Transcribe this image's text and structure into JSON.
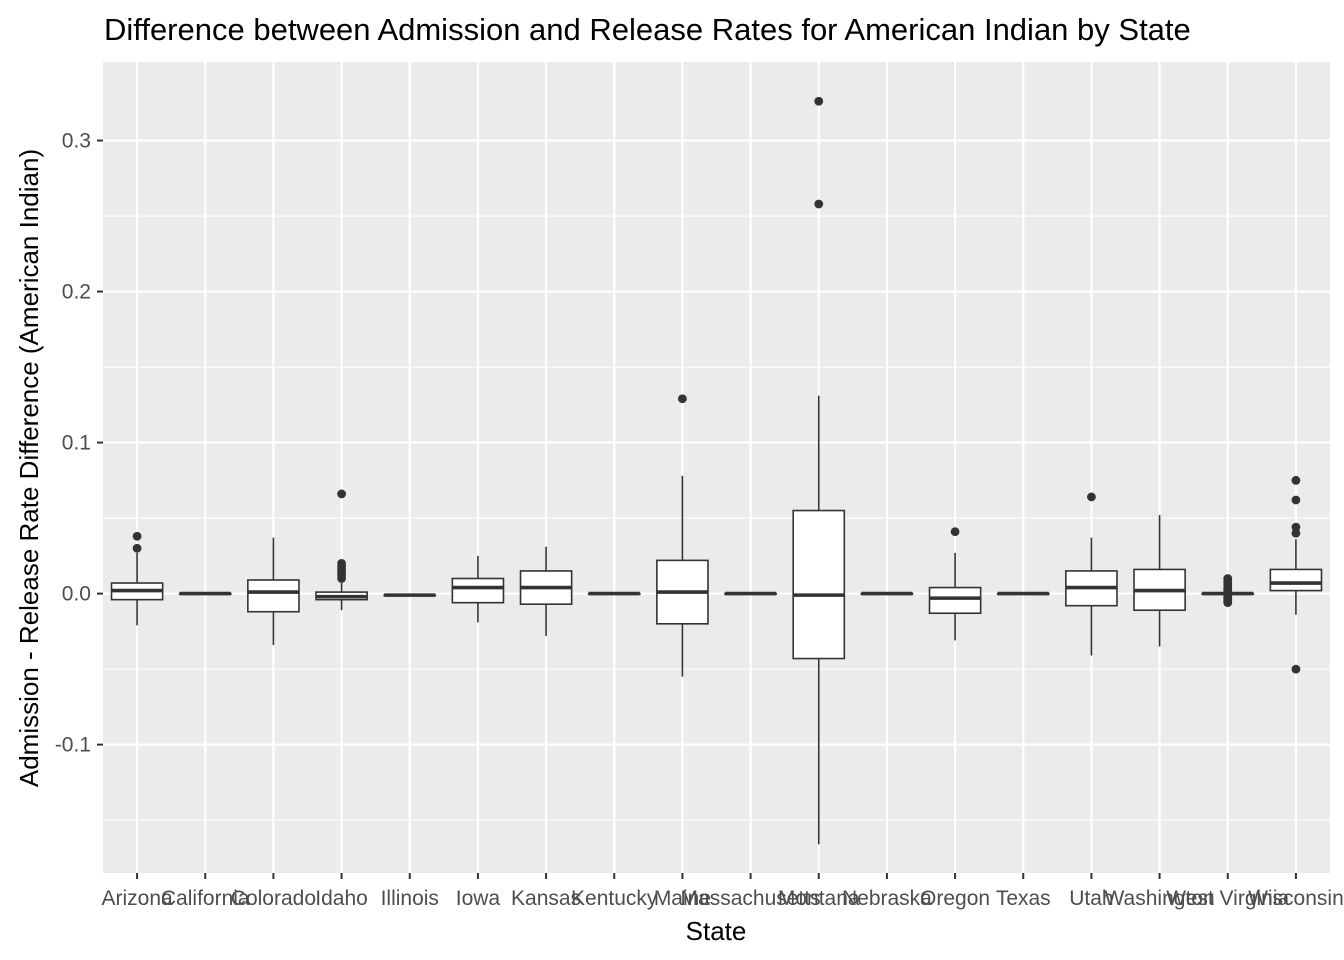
{
  "chart_data": {
    "type": "boxplot",
    "title": "Difference between Admission and Release Rates for American Indian by State",
    "xlabel": "State",
    "ylabel": "Admission - Release Rate Difference (American Indian)",
    "ylim": [
      -0.185,
      0.352
    ],
    "yticks": [
      -0.1,
      0.0,
      0.1,
      0.2,
      0.3
    ],
    "ytick_labels": [
      "-0.1",
      "0.0",
      "0.1",
      "0.2",
      "0.3"
    ],
    "grid": true,
    "background_color": "#ebebeb",
    "grid_color": "#ffffff",
    "box_fill": "#ffffff",
    "box_line_color": "#333333",
    "categories": [
      "Arizona",
      "California",
      "Colorado",
      "Idaho",
      "Illinois",
      "Iowa",
      "Kansas",
      "Kentucky",
      "Maine",
      "Massachusetts",
      "Montana",
      "Nebraska",
      "Oregon",
      "Texas",
      "Utah",
      "Washington",
      "West Virginia",
      "Wisconsin"
    ],
    "boxes": [
      {
        "category": "Arizona",
        "whisker_low": -0.021,
        "q1": -0.004,
        "median": 0.002,
        "q3": 0.007,
        "whisker_high": 0.027,
        "outliers": [
          0.038,
          0.03
        ]
      },
      {
        "category": "California",
        "whisker_low": 0.0,
        "q1": 0.0,
        "median": 0.0,
        "q3": 0.0,
        "whisker_high": 0.0,
        "outliers": []
      },
      {
        "category": "Colorado",
        "whisker_low": -0.034,
        "q1": -0.012,
        "median": 0.001,
        "q3": 0.009,
        "whisker_high": 0.037,
        "outliers": []
      },
      {
        "category": "Idaho",
        "whisker_low": -0.011,
        "q1": -0.004,
        "median": -0.002,
        "q3": 0.001,
        "whisker_high": 0.007,
        "outliers": [
          0.066,
          0.02,
          0.018,
          0.016,
          0.014,
          0.012,
          0.01
        ]
      },
      {
        "category": "Illinois",
        "whisker_low": -0.001,
        "q1": -0.001,
        "median": -0.001,
        "q3": -0.001,
        "whisker_high": -0.001,
        "outliers": []
      },
      {
        "category": "Iowa",
        "whisker_low": -0.019,
        "q1": -0.006,
        "median": 0.004,
        "q3": 0.01,
        "whisker_high": 0.025,
        "outliers": []
      },
      {
        "category": "Kansas",
        "whisker_low": -0.028,
        "q1": -0.007,
        "median": 0.004,
        "q3": 0.015,
        "whisker_high": 0.031,
        "outliers": []
      },
      {
        "category": "Kentucky",
        "whisker_low": 0.0,
        "q1": 0.0,
        "median": 0.0,
        "q3": 0.0,
        "whisker_high": 0.0,
        "outliers": []
      },
      {
        "category": "Maine",
        "whisker_low": -0.055,
        "q1": -0.02,
        "median": 0.001,
        "q3": 0.022,
        "whisker_high": 0.078,
        "outliers": [
          0.129
        ]
      },
      {
        "category": "Massachusetts",
        "whisker_low": 0.0,
        "q1": 0.0,
        "median": 0.0,
        "q3": 0.0,
        "whisker_high": 0.0,
        "outliers": []
      },
      {
        "category": "Montana",
        "whisker_low": -0.166,
        "q1": -0.043,
        "median": -0.001,
        "q3": 0.055,
        "whisker_high": 0.131,
        "outliers": [
          0.326,
          0.258
        ]
      },
      {
        "category": "Nebraska",
        "whisker_low": 0.0,
        "q1": 0.0,
        "median": 0.0,
        "q3": 0.0,
        "whisker_high": 0.0,
        "outliers": []
      },
      {
        "category": "Oregon",
        "whisker_low": -0.031,
        "q1": -0.013,
        "median": -0.003,
        "q3": 0.004,
        "whisker_high": 0.027,
        "outliers": [
          0.041
        ]
      },
      {
        "category": "Texas",
        "whisker_low": 0.0,
        "q1": 0.0,
        "median": 0.0,
        "q3": 0.0,
        "whisker_high": 0.0,
        "outliers": []
      },
      {
        "category": "Utah",
        "whisker_low": -0.041,
        "q1": -0.008,
        "median": 0.004,
        "q3": 0.015,
        "whisker_high": 0.037,
        "outliers": [
          0.064
        ]
      },
      {
        "category": "Washington",
        "whisker_low": -0.035,
        "q1": -0.011,
        "median": 0.002,
        "q3": 0.016,
        "whisker_high": 0.052,
        "outliers": []
      },
      {
        "category": "West Virginia",
        "whisker_low": 0.0,
        "q1": 0.0,
        "median": 0.0,
        "q3": 0.0,
        "whisker_high": 0.0,
        "outliers": [
          0.01,
          0.008,
          0.006,
          0.004,
          0.003,
          0.002,
          -0.002,
          -0.003,
          -0.004,
          -0.005,
          -0.006
        ]
      },
      {
        "category": "Wisconsin",
        "whisker_low": -0.014,
        "q1": 0.002,
        "median": 0.007,
        "q3": 0.016,
        "whisker_high": 0.036,
        "outliers": [
          0.075,
          0.062,
          0.044,
          0.04,
          -0.05
        ]
      }
    ]
  }
}
